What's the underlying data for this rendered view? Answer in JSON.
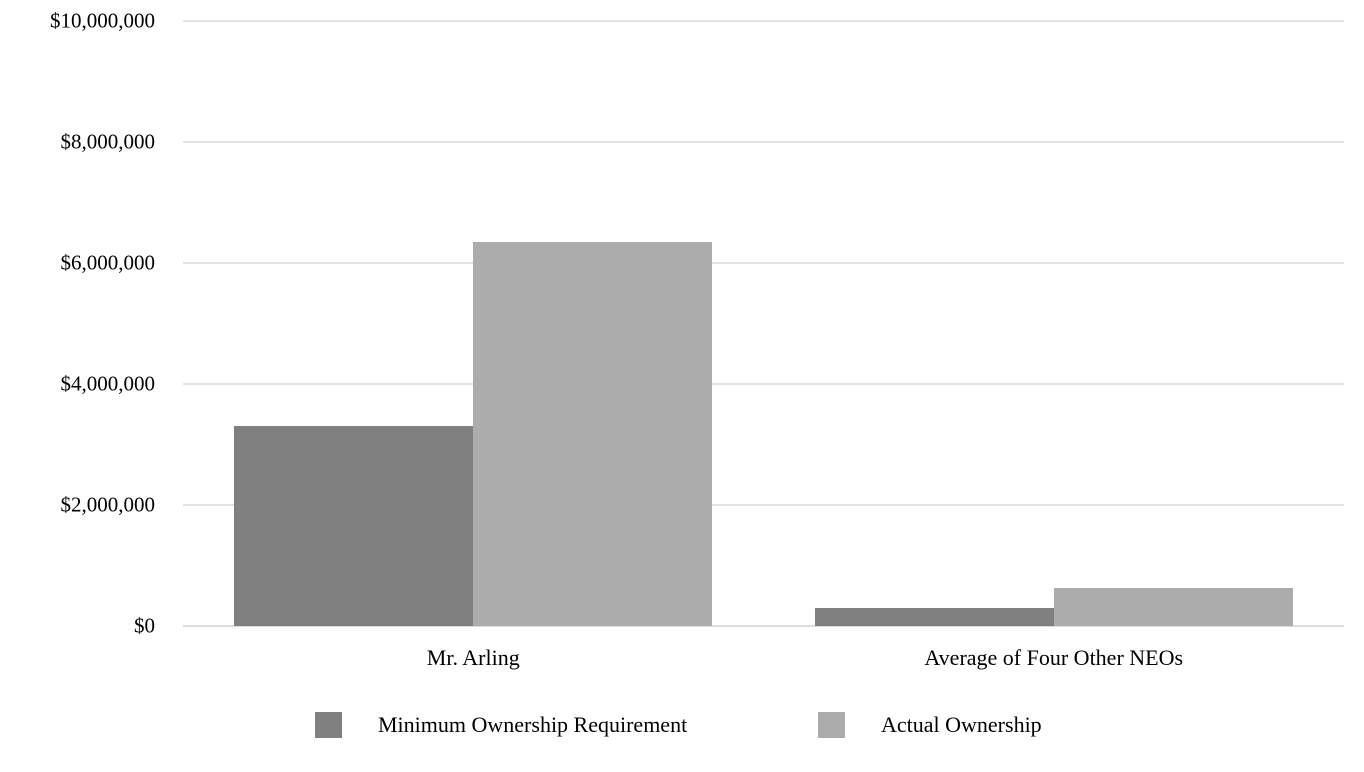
{
  "chart_data": {
    "type": "bar",
    "title": "",
    "categories": [
      "Mr. Arling",
      "Average of Four Other NEOs"
    ],
    "series": [
      {
        "name": "Minimum Ownership Requirement",
        "color": "#808080",
        "values": [
          3300000,
          300000
        ]
      },
      {
        "name": "Actual Ownership",
        "color": "#acacac",
        "values": [
          6350000,
          630000
        ]
      }
    ],
    "y_axis": {
      "min": 0,
      "max": 10000000,
      "tick_step": 2000000,
      "tick_labels": [
        "$0",
        "$2,000,000",
        "$4,000,000",
        "$6,000,000",
        "$8,000,000",
        "$10,000,000"
      ]
    },
    "grid": true,
    "legend_position": "bottom",
    "colors": {
      "gridline": "#e2e2e2",
      "baseline": "#dcdcdc",
      "text": "#000000",
      "background": "#ffffff"
    }
  }
}
